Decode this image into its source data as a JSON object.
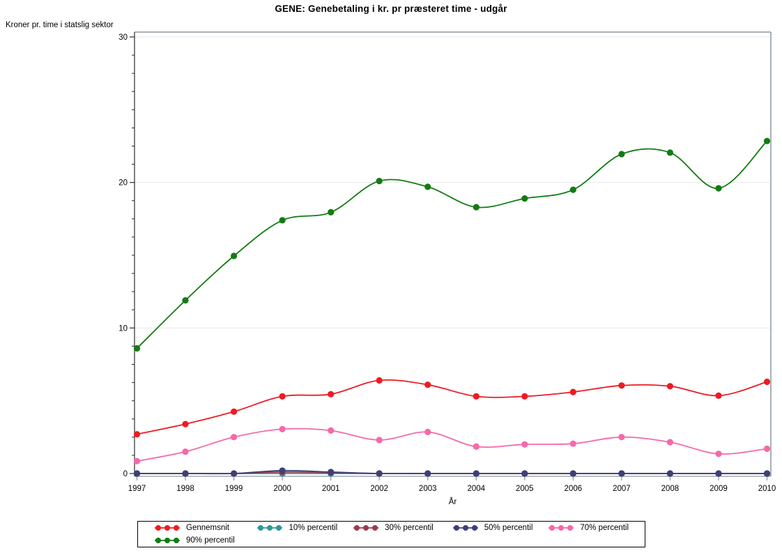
{
  "title": "GENE: Genebetaling i kr. pr præsteret time - udgår",
  "y_unit_label": "Kroner pr. time i statslig sektor",
  "x_axis_label": "År",
  "palette": {
    "gridline": "#E8E8E8",
    "frame": "#8E979D",
    "axis": "#2B2B2B",
    "text": "#000000"
  },
  "chart_data": {
    "type": "line",
    "title": "GENE: Genebetaling i kr. pr præsteret time - udgår",
    "xlabel": "År",
    "ylabel": "Kroner pr. time i statslig sektor",
    "x": [
      1997,
      1998,
      1999,
      2000,
      2001,
      2002,
      2003,
      2004,
      2005,
      2006,
      2007,
      2008,
      2009,
      2010
    ],
    "ylim": [
      0,
      30
    ],
    "yticks": [
      0,
      10,
      20,
      30
    ],
    "grid": true,
    "legend_position": "bottom-box",
    "interpolation": "smooth-spline",
    "series": [
      {
        "name": "Gennemsnit",
        "color": "#ED1B23",
        "values": [
          2.7,
          3.4,
          4.25,
          5.3,
          5.45,
          6.4,
          6.1,
          5.3,
          5.3,
          5.6,
          6.05,
          6.0,
          5.35,
          6.3
        ]
      },
      {
        "name": "10% percentil",
        "color": "#2E9999",
        "values": [
          0,
          0,
          0,
          0,
          0,
          0,
          0,
          0,
          0,
          0,
          0,
          0,
          0,
          0
        ]
      },
      {
        "name": "30% percentil",
        "color": "#9C3A4D",
        "values": [
          0,
          0,
          0,
          0.1,
          0.05,
          0,
          0,
          0,
          0,
          0,
          0,
          0,
          0,
          0
        ]
      },
      {
        "name": "50% percentil",
        "color": "#3C4077",
        "values": [
          0,
          0,
          0,
          0.2,
          0.1,
          0,
          0,
          0,
          0,
          0,
          0,
          0,
          0,
          0
        ]
      },
      {
        "name": "70% percentil",
        "color": "#F668A9",
        "values": [
          0.85,
          1.5,
          2.5,
          3.05,
          2.95,
          2.3,
          2.85,
          1.85,
          2.0,
          2.05,
          2.5,
          2.15,
          1.35,
          1.7
        ]
      },
      {
        "name": "90% percentil",
        "color": "#127B12",
        "values": [
          8.6,
          11.9,
          14.95,
          17.4,
          17.95,
          20.1,
          19.7,
          18.3,
          18.9,
          19.5,
          21.95,
          22.05,
          19.6,
          22.85
        ]
      }
    ]
  }
}
